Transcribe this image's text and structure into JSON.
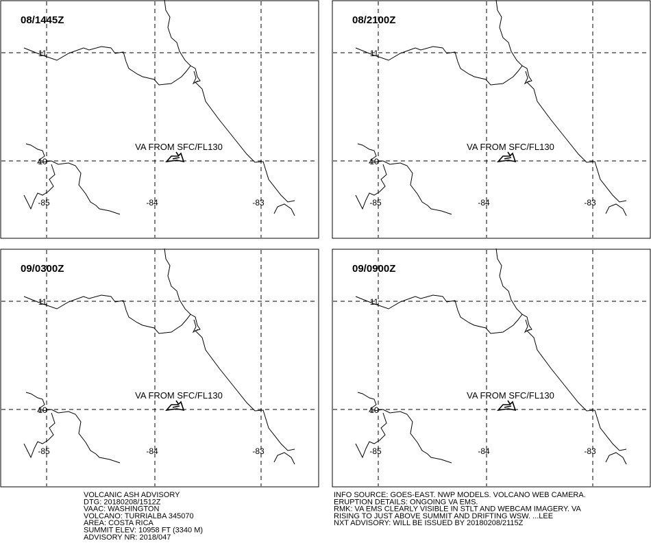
{
  "panels": [
    {
      "time": "08/1445Z",
      "va_label": "VA FROM SFC/FL130",
      "lat_labels": [
        "11",
        "10"
      ],
      "lon_labels": [
        "-85",
        "-84",
        "-83"
      ]
    },
    {
      "time": "08/2100Z",
      "va_label": "VA FROM SFC/FL130",
      "lat_labels": [
        "11",
        "10"
      ],
      "lon_labels": [
        "-85",
        "-84",
        "-83"
      ]
    },
    {
      "time": "09/0300Z",
      "va_label": "VA FROM SFC/FL130",
      "lat_labels": [
        "11",
        "10"
      ],
      "lon_labels": [
        "-85",
        "-84",
        "-83"
      ]
    },
    {
      "time": "09/0900Z",
      "va_label": "VA FROM SFC/FL130",
      "lat_labels": [
        "11",
        "10"
      ],
      "lon_labels": [
        "-85",
        "-84",
        "-83"
      ]
    }
  ],
  "advisory": {
    "left": [
      "VOLCANIC ASH ADVISORY",
      "DTG: 20180208/1512Z",
      "VAAC: WASHINGTON",
      "VOLCANO: TURRIALBA 345070",
      "AREA: COSTA RICA",
      "SUMMIT ELEV: 10958 FT (3340 M)",
      "ADVISORY NR: 2018/047"
    ],
    "right": [
      "INFO SOURCE: GOES-EAST. NWP MODELS. VOLCANO WEB CAMERA.",
      "ERUPTION DETAILS: ONGOING VA EMS.",
      "RMK: VA EMS CLEARLY VISIBLE IN STLT AND WEBCAM IMAGERY. VA",
      "RISING TO JUST ABOVE SUMMIT AND DRIFTING WSW. ...LEE",
      "NXT ADVISORY: WILL BE ISSUED BY 20180208/2115Z"
    ]
  }
}
